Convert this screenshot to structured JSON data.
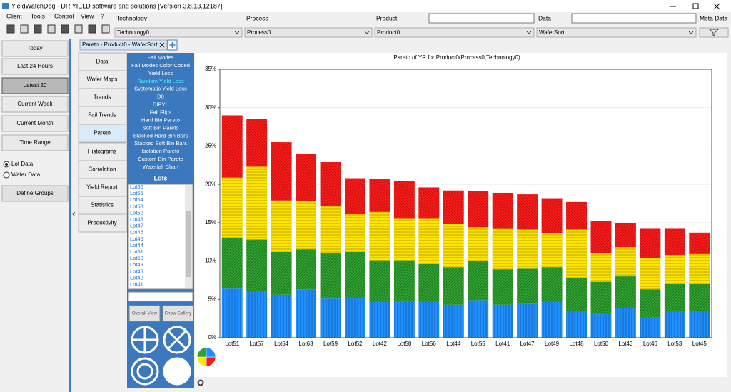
{
  "window_title": "YieldWatchDog - DR YIELD software and solutions [Version 3.8.13.12187]",
  "menu": [
    "Client",
    "Tools",
    "Control",
    "View",
    "?"
  ],
  "filters": [
    {
      "label": "Technology",
      "value": "Technology0"
    },
    {
      "label": "Process",
      "value": "Process0"
    },
    {
      "label": "Product",
      "value": "Product0"
    },
    {
      "label": "Data",
      "value": "WaferSort"
    }
  ],
  "meta_data_label": "Meta Data",
  "time_buttons": [
    "Today",
    "Last 24 Hours",
    "Latest 20",
    "Current Week",
    "Current Month",
    "Time Range"
  ],
  "data_options": [
    "Lot Data",
    "Wafer Data"
  ],
  "define_groups": "Define Groups",
  "tab": "Pareto - Product0 - WaferSort",
  "nav": [
    "Data",
    "Wafer Maps",
    "Trends",
    "Fail Trends",
    "Pareto",
    "Histograms",
    "Correlation",
    "Yield Report",
    "Statistics",
    "Productivity"
  ],
  "analyses": [
    "Fail Modes",
    "Fail Modes Color Coded",
    "Yield Loss",
    "Random Yield Loss",
    "Systematic Yield Loss",
    "D0",
    "DIPYL",
    "Fail Flips",
    "Hard Bin Pareto",
    "Soft Bin Pareto",
    "Stacked Hard Bin Bars",
    "Stacked Soft Bin Bars",
    "Isolation Pareto",
    "Custom Bin Pareto",
    "Waterfall Chart"
  ],
  "lots_title": "Lots",
  "lots": [
    "Lot56",
    "Lot55",
    "Lot54",
    "Lot53",
    "Lot52",
    "Lot48",
    "Lot47",
    "Lot46",
    "Lot45",
    "Lot44",
    "Lot51",
    "Lot50",
    "Lot49",
    "Lot43",
    "Lot42",
    "Lot41"
  ],
  "panel_buttons": [
    "Overall View",
    "Show Gallery"
  ],
  "chart_data": {
    "type": "stacked_bar",
    "title": "Pareto of YR for Product0(Process0,Technology0)",
    "categories": [
      "Lot51",
      "Lot57",
      "Lot54",
      "Lot63",
      "Lot59",
      "Lot52",
      "Lot42",
      "Lot58",
      "Lot56",
      "Lot44",
      "Lot55",
      "Lot41",
      "Lot47",
      "Lot49",
      "Lot48",
      "Lot50",
      "Lot43",
      "Lot46",
      "Lot53",
      "Lot45"
    ],
    "series": [
      {
        "color": "#1e8fff",
        "values": [
          6.4,
          6.1,
          5.6,
          6.3,
          5.1,
          5.2,
          4.7,
          4.8,
          4.7,
          4.3,
          4.9,
          4.3,
          4.4,
          4.7,
          3.4,
          3.2,
          3.9,
          2.7,
          3.4,
          3.5
        ]
      },
      {
        "color": "#2ea12e",
        "values": [
          6.6,
          6.7,
          5.6,
          5.2,
          5.9,
          6.0,
          5.4,
          5.3,
          4.9,
          4.9,
          5.1,
          4.6,
          4.6,
          4.5,
          4.4,
          4.1,
          4.1,
          3.6,
          3.6,
          3.5
        ]
      },
      {
        "color": "#ffe400",
        "values": [
          7.9,
          9.5,
          6.7,
          6.3,
          6.2,
          4.9,
          6.3,
          5.4,
          5.9,
          5.6,
          4.4,
          5.3,
          5.1,
          4.4,
          6.3,
          3.7,
          3.8,
          4.1,
          3.8,
          3.9
        ]
      },
      {
        "color": "#ff1a1a",
        "values": [
          8.1,
          6.2,
          7.6,
          6.2,
          5.7,
          4.7,
          4.3,
          4.9,
          4.1,
          4.4,
          4.7,
          4.7,
          4.6,
          4.5,
          3.6,
          4.2,
          3.1,
          3.8,
          3.4,
          2.8
        ]
      }
    ],
    "ylim": [
      0,
      35
    ],
    "yticks": [
      {
        "value": 0,
        "label": "0%"
      },
      {
        "value": 5,
        "label": "5%"
      },
      {
        "value": 10,
        "label": "10%"
      },
      {
        "value": 15,
        "label": "15%"
      },
      {
        "value": 20,
        "label": "20%"
      },
      {
        "value": 25,
        "label": "25%"
      },
      {
        "value": 30,
        "label": "30%"
      },
      {
        "value": 35,
        "label": "35%"
      }
    ],
    "grid": true
  }
}
